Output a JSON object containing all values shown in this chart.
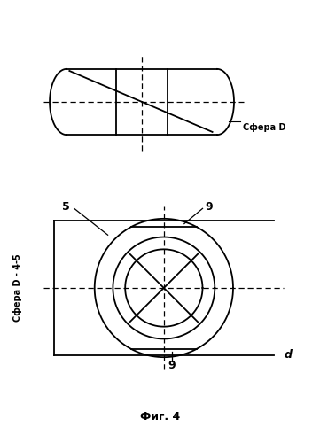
{
  "title": "Фиг. 4",
  "label_sfera_d": "Сфера D",
  "label_sfera_d45": "Сфера D - 4-5",
  "label_5": "5",
  "label_9a": "9",
  "label_9b": "9",
  "label_d": "d",
  "line_color": "#000000",
  "bg_color": "#ffffff"
}
